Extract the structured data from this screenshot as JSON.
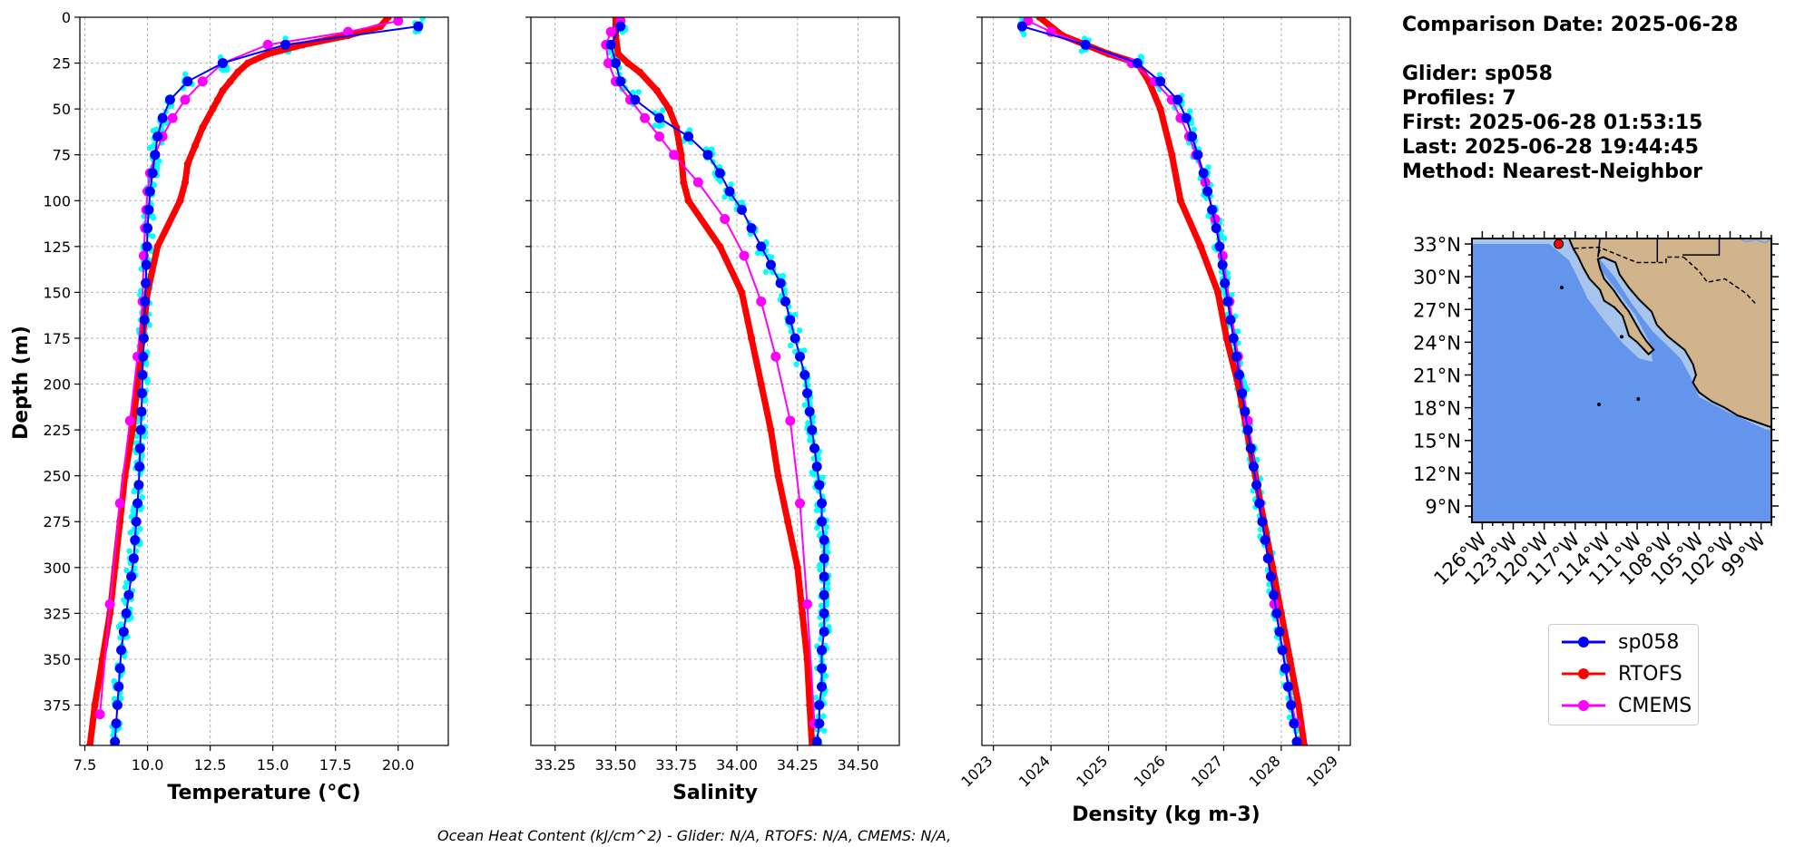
{
  "info": {
    "comparison": "Comparison Date: 2025-06-28",
    "glider": "Glider: sp058",
    "profiles": "Profiles: 7",
    "first": "First: 2025-06-28 01:53:15",
    "last": "Last: 2025-06-28 19:44:45",
    "method": "Method: Nearest-Neighbor"
  },
  "footer": "Ocean Heat Content (kJ/cm^2) - Glider: N/A,  RTOFS: N/A,  CMEMS: N/A,",
  "legend": [
    {
      "label": "sp058",
      "color": "#0000ff"
    },
    {
      "label": "RTOFS",
      "color": "#ff0000"
    },
    {
      "label": "CMEMS",
      "color": "#ff00ff"
    }
  ],
  "colors": {
    "glider_raw": "#00ffff",
    "glider": "#0000ff",
    "rtofs": "#ff0000",
    "cmems": "#ff00ff",
    "ocean": "#6495ed",
    "land": "#d2b48c",
    "shelf": "#a6c4ec"
  },
  "chart_data": [
    {
      "type": "line",
      "panel": "temperature",
      "xlabel": "Temperature (°C)",
      "ylabel": "Depth (m)",
      "xlim": [
        7.3,
        22.0
      ],
      "ylim": [
        397,
        0
      ],
      "xticks": [
        7.5,
        10.0,
        12.5,
        15.0,
        17.5,
        20.0
      ],
      "xtick_labels": [
        "7.5",
        "10.0",
        "12.5",
        "15.0",
        "17.5",
        "20.0"
      ],
      "yticks": [
        0,
        25,
        50,
        75,
        100,
        125,
        150,
        175,
        200,
        225,
        250,
        275,
        300,
        325,
        350,
        375
      ],
      "ytick_labels": [
        "0",
        "25",
        "50",
        "75",
        "100",
        "125",
        "150",
        "175",
        "200",
        "225",
        "250",
        "275",
        "300",
        "325",
        "350",
        "375"
      ],
      "grid": true,
      "series": [
        {
          "name": "sp058",
          "depth": [
            5,
            15,
            25,
            35,
            45,
            55,
            65,
            75,
            85,
            95,
            105,
            115,
            125,
            135,
            145,
            155,
            165,
            175,
            185,
            195,
            205,
            215,
            225,
            235,
            245,
            255,
            265,
            275,
            285,
            295,
            305,
            315,
            325,
            335,
            345,
            355,
            365,
            375,
            385,
            395
          ],
          "values": [
            20.8,
            15.5,
            13.0,
            11.6,
            10.9,
            10.6,
            10.4,
            10.3,
            10.2,
            10.1,
            10.05,
            10.0,
            9.98,
            9.95,
            9.93,
            9.9,
            9.88,
            9.85,
            9.82,
            9.8,
            9.78,
            9.76,
            9.73,
            9.7,
            9.68,
            9.65,
            9.6,
            9.55,
            9.5,
            9.45,
            9.35,
            9.25,
            9.15,
            9.05,
            8.95,
            8.9,
            8.85,
            8.8,
            8.75,
            8.7
          ]
        },
        {
          "name": "RTOFS",
          "depth": [
            0,
            5,
            10,
            15,
            20,
            25,
            30,
            35,
            40,
            45,
            50,
            60,
            70,
            80,
            90,
            100,
            125,
            150,
            175,
            200,
            225,
            250,
            275,
            300,
            325,
            350,
            375,
            397
          ],
          "values": [
            19.6,
            19.3,
            18.0,
            16.2,
            14.8,
            14.0,
            13.6,
            13.3,
            13.0,
            12.8,
            12.6,
            12.2,
            11.9,
            11.6,
            11.5,
            11.3,
            10.4,
            10.0,
            9.8,
            9.6,
            9.4,
            9.1,
            8.9,
            8.7,
            8.5,
            8.2,
            7.9,
            7.7
          ]
        },
        {
          "name": "CMEMS",
          "depth": [
            2,
            8,
            15,
            25,
            35,
            45,
            55,
            65,
            75,
            85,
            95,
            105,
            115,
            130,
            155,
            185,
            220,
            265,
            320,
            380
          ],
          "values": [
            20.0,
            18.0,
            14.8,
            13.0,
            12.2,
            11.5,
            11.0,
            10.6,
            10.3,
            10.1,
            10.0,
            9.95,
            9.9,
            9.85,
            9.8,
            9.6,
            9.3,
            8.9,
            8.5,
            8.1
          ]
        }
      ]
    },
    {
      "type": "line",
      "panel": "salinity",
      "xlabel": "Salinity",
      "xlim": [
        33.15,
        34.67
      ],
      "ylim": [
        397,
        0
      ],
      "xticks": [
        33.25,
        33.5,
        33.75,
        34.0,
        34.25,
        34.5
      ],
      "xtick_labels": [
        "33.25",
        "33.50",
        "33.75",
        "34.00",
        "34.25",
        "34.50"
      ],
      "grid": true,
      "series": [
        {
          "name": "sp058",
          "depth": [
            5,
            15,
            25,
            35,
            45,
            55,
            65,
            75,
            85,
            95,
            105,
            115,
            125,
            135,
            145,
            155,
            165,
            175,
            185,
            195,
            205,
            215,
            225,
            235,
            245,
            255,
            265,
            275,
            285,
            295,
            305,
            315,
            325,
            335,
            345,
            355,
            365,
            375,
            385,
            395
          ],
          "values": [
            33.52,
            33.48,
            33.5,
            33.52,
            33.58,
            33.68,
            33.8,
            33.88,
            33.93,
            33.97,
            34.02,
            34.06,
            34.1,
            34.14,
            34.18,
            34.2,
            34.22,
            34.24,
            34.26,
            34.28,
            34.29,
            34.3,
            34.31,
            34.32,
            34.33,
            34.34,
            34.35,
            34.35,
            34.36,
            34.36,
            34.36,
            34.36,
            34.36,
            34.36,
            34.35,
            34.35,
            34.35,
            34.34,
            34.34,
            34.33
          ]
        },
        {
          "name": "RTOFS",
          "depth": [
            0,
            10,
            20,
            25,
            30,
            40,
            50,
            60,
            75,
            90,
            100,
            125,
            150,
            175,
            200,
            225,
            250,
            275,
            300,
            325,
            350,
            375,
            397
          ],
          "values": [
            33.5,
            33.5,
            33.51,
            33.55,
            33.6,
            33.67,
            33.72,
            33.75,
            33.77,
            33.78,
            33.8,
            33.93,
            34.02,
            34.06,
            34.1,
            34.14,
            34.17,
            34.21,
            34.25,
            34.27,
            34.29,
            34.3,
            34.31
          ]
        },
        {
          "name": "CMEMS",
          "depth": [
            2,
            8,
            15,
            25,
            35,
            45,
            55,
            65,
            75,
            90,
            110,
            130,
            155,
            185,
            220,
            265,
            320,
            385
          ],
          "values": [
            33.52,
            33.48,
            33.46,
            33.47,
            33.5,
            33.56,
            33.62,
            33.68,
            33.74,
            33.84,
            33.95,
            34.03,
            34.1,
            34.16,
            34.22,
            34.26,
            34.29,
            34.32
          ]
        }
      ]
    },
    {
      "type": "line",
      "panel": "density",
      "xlabel": "Density (kg m-3)",
      "xlim": [
        1022.8,
        1029.2
      ],
      "ylim": [
        397,
        0
      ],
      "xticks": [
        1023,
        1024,
        1025,
        1026,
        1027,
        1028,
        1029
      ],
      "xtick_labels": [
        "1023",
        "1024",
        "1025",
        "1026",
        "1027",
        "1028",
        "1029"
      ],
      "grid": true,
      "series": [
        {
          "name": "sp058",
          "depth": [
            5,
            15,
            25,
            35,
            45,
            55,
            65,
            75,
            85,
            95,
            105,
            115,
            125,
            135,
            145,
            155,
            165,
            175,
            185,
            195,
            205,
            215,
            225,
            235,
            245,
            255,
            265,
            275,
            285,
            295,
            305,
            315,
            325,
            335,
            345,
            355,
            365,
            375,
            385,
            395
          ],
          "values": [
            1023.5,
            1024.6,
            1025.5,
            1025.9,
            1026.2,
            1026.35,
            1026.45,
            1026.55,
            1026.65,
            1026.72,
            1026.8,
            1026.87,
            1026.93,
            1026.98,
            1027.02,
            1027.07,
            1027.12,
            1027.17,
            1027.22,
            1027.27,
            1027.32,
            1027.37,
            1027.42,
            1027.47,
            1027.52,
            1027.57,
            1027.62,
            1027.67,
            1027.72,
            1027.77,
            1027.82,
            1027.87,
            1027.92,
            1027.97,
            1028.02,
            1028.07,
            1028.12,
            1028.17,
            1028.22,
            1028.27
          ]
        },
        {
          "name": "RTOFS",
          "depth": [
            0,
            10,
            20,
            25,
            35,
            50,
            75,
            100,
            125,
            150,
            175,
            200,
            225,
            250,
            275,
            300,
            325,
            350,
            375,
            397
          ],
          "values": [
            1023.8,
            1024.2,
            1025.0,
            1025.5,
            1025.7,
            1025.9,
            1026.1,
            1026.25,
            1026.6,
            1026.9,
            1027.05,
            1027.25,
            1027.4,
            1027.55,
            1027.7,
            1027.85,
            1028.0,
            1028.15,
            1028.3,
            1028.4
          ]
        },
        {
          "name": "CMEMS",
          "depth": [
            2,
            8,
            15,
            25,
            35,
            45,
            55,
            65,
            75,
            90,
            110,
            130,
            155,
            185,
            220,
            265,
            320,
            385
          ],
          "values": [
            1023.6,
            1024.0,
            1024.6,
            1025.4,
            1025.8,
            1026.1,
            1026.25,
            1026.4,
            1026.52,
            1026.68,
            1026.85,
            1026.98,
            1027.1,
            1027.25,
            1027.42,
            1027.63,
            1027.88,
            1028.25
          ]
        }
      ]
    },
    {
      "type": "map",
      "panel": "location",
      "lat_range": [
        7.5,
        33.5
      ],
      "lon_range": [
        -127.0,
        -98.0
      ],
      "lat_ticks": [
        9,
        12,
        15,
        18,
        21,
        24,
        27,
        30,
        33
      ],
      "lat_labels": [
        "9°N",
        "12°N",
        "15°N",
        "18°N",
        "21°N",
        "24°N",
        "27°N",
        "30°N",
        "33°N"
      ],
      "lon_ticks": [
        -126,
        -123,
        -120,
        -117,
        -114,
        -111,
        -108,
        -105,
        -102,
        -99
      ],
      "lon_labels": [
        "126°W",
        "123°W",
        "120°W",
        "117°W",
        "114°W",
        "111°W",
        "108°W",
        "105°W",
        "102°W",
        "99°W"
      ],
      "glider_position": {
        "lat": 33.0,
        "lon": -118.6
      }
    }
  ]
}
